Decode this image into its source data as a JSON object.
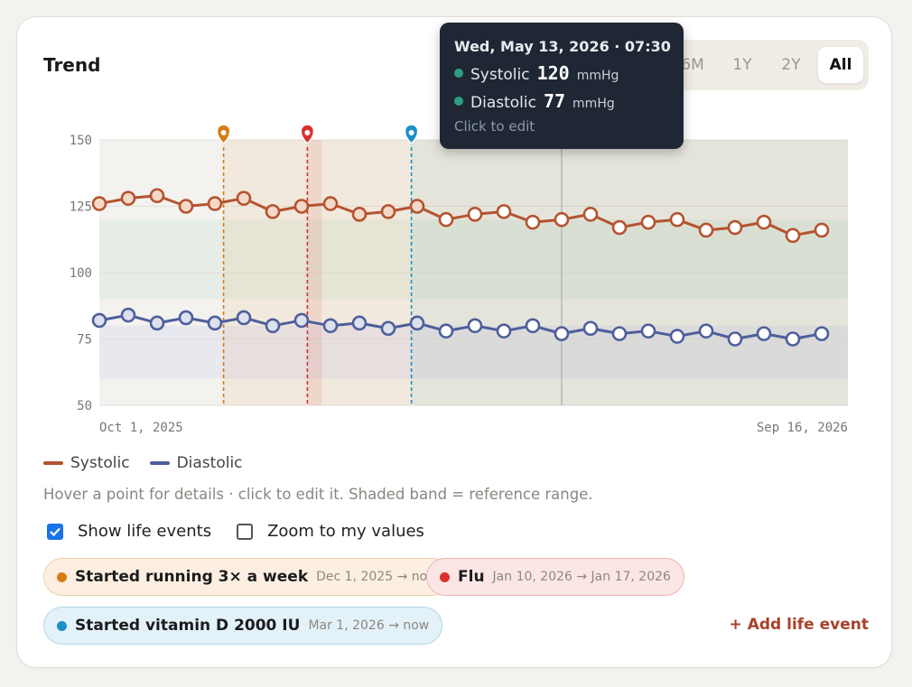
{
  "card": {
    "title": "Trend"
  },
  "range_selector": {
    "options": [
      "6M",
      "1Y",
      "2Y",
      "All"
    ],
    "active": "All"
  },
  "tooltip": {
    "header": "Wed, May 13, 2026 · 07:30",
    "systolic_label": "Systolic",
    "systolic_value": "120",
    "diastolic_label": "Diastolic",
    "diastolic_value": "77",
    "unit": "mmHg",
    "footer": "Click to edit"
  },
  "legend": {
    "systolic": "Systolic",
    "diastolic": "Diastolic"
  },
  "hint": "Hover a point for details · click to edit it. Shaded band = reference range.",
  "options": {
    "show_life_events": {
      "label": "Show life events",
      "checked": true
    },
    "zoom_to_values": {
      "label": "Zoom to my values",
      "checked": false
    }
  },
  "life_events": [
    {
      "name": "Started running 3× a week",
      "dates": "Dec 1, 2025 → now",
      "color": "#d97b12"
    },
    {
      "name": "Flu",
      "dates": "Jan 10, 2026 → Jan 17, 2026",
      "color": "#d9302e"
    },
    {
      "name": "Started vitamin D 2000 IU",
      "dates": "Mar 1, 2026 → now",
      "color": "#1a8fc9"
    }
  ],
  "add_event_label": "+ Add life event",
  "colors": {
    "systolic": "#b5532f",
    "diastolic": "#4d5f9c",
    "systolic_fill": "#f5d9c8",
    "diastolic_fill": "#dde1ee"
  },
  "chart_data": {
    "type": "line",
    "x_start_label": "Oct 1, 2025",
    "x_end_label": "Sep 16, 2026",
    "ylim": [
      50,
      150
    ],
    "yticks": [
      50,
      75,
      100,
      125,
      150
    ],
    "grid": true,
    "reference_range": {
      "systolic": [
        90,
        120
      ],
      "diastolic": [
        60,
        80
      ]
    },
    "series": [
      {
        "name": "Systolic",
        "values": [
          126,
          128,
          129,
          125,
          126,
          128,
          123,
          125,
          126,
          122,
          123,
          125,
          120,
          122,
          123,
          119,
          120,
          122,
          117,
          119,
          120,
          116,
          117,
          119,
          114,
          116
        ]
      },
      {
        "name": "Diastolic",
        "values": [
          82,
          84,
          81,
          83,
          81,
          83,
          80,
          82,
          80,
          81,
          79,
          81,
          78,
          80,
          78,
          80,
          77,
          79,
          77,
          78,
          76,
          78,
          75,
          77,
          75,
          77
        ]
      }
    ],
    "highlighted_index": 16,
    "event_marker_indices": [
      4.3,
      7.2,
      10.8
    ]
  }
}
